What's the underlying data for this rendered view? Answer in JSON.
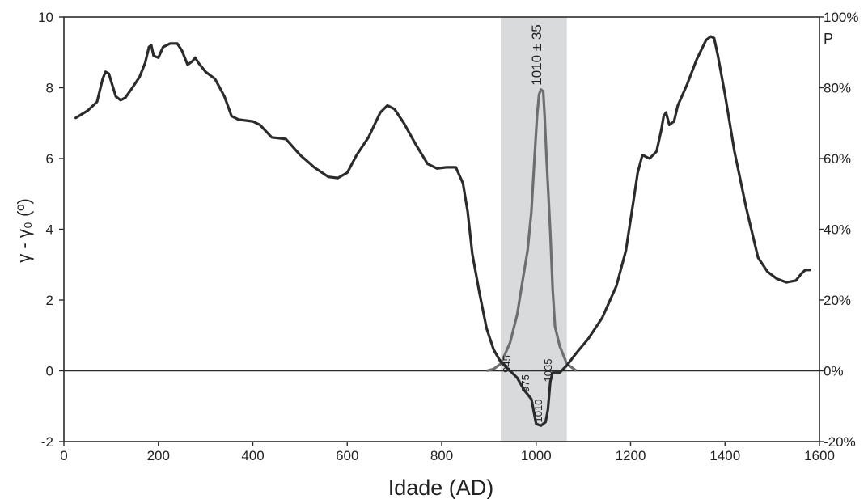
{
  "chart_data": {
    "type": "line",
    "xlabel": "Idade (AD)",
    "ylabel": "γ - γ₀ (º)",
    "y2label": "P",
    "xlim": [
      0,
      1600
    ],
    "ylim": [
      -2,
      10
    ],
    "y2lim": [
      "-20%",
      "100%"
    ],
    "x_ticks": [
      "0",
      "200",
      "400",
      "600",
      "800",
      "1000",
      "1200",
      "1400",
      "1600"
    ],
    "y_ticks": [
      "-2",
      "0",
      "2",
      "4",
      "6",
      "8",
      "10"
    ],
    "y2_ticks": [
      "-20%",
      "0%",
      "20%",
      "40%",
      "60%",
      "80%",
      "100%"
    ],
    "shaded_interval": [
      925,
      1065
    ],
    "colors": {
      "main": "#2b2b2b",
      "probability": "#6e6e6e",
      "band": "#d9dadc"
    },
    "series": [
      {
        "points": [
          [
            25,
            7.15
          ],
          [
            50,
            7.35
          ],
          [
            70,
            7.6
          ],
          [
            82,
            8.25
          ],
          [
            88,
            8.45
          ],
          [
            95,
            8.4
          ],
          [
            102,
            8.1
          ],
          [
            110,
            7.75
          ],
          [
            120,
            7.65
          ],
          [
            130,
            7.72
          ],
          [
            145,
            8.0
          ],
          [
            160,
            8.3
          ],
          [
            172,
            8.7
          ],
          [
            180,
            9.15
          ],
          [
            185,
            9.2
          ],
          [
            190,
            8.9
          ],
          [
            200,
            8.85
          ],
          [
            210,
            9.15
          ],
          [
            225,
            9.25
          ],
          [
            240,
            9.25
          ],
          [
            250,
            9.05
          ],
          [
            262,
            8.65
          ],
          [
            272,
            8.75
          ],
          [
            278,
            8.85
          ],
          [
            285,
            8.7
          ],
          [
            300,
            8.45
          ],
          [
            320,
            8.25
          ],
          [
            340,
            7.75
          ],
          [
            355,
            7.2
          ],
          [
            370,
            7.1
          ],
          [
            400,
            7.05
          ],
          [
            415,
            6.95
          ],
          [
            440,
            6.6
          ],
          [
            470,
            6.55
          ],
          [
            500,
            6.1
          ],
          [
            530,
            5.75
          ],
          [
            560,
            5.48
          ],
          [
            580,
            5.45
          ],
          [
            600,
            5.6
          ],
          [
            620,
            6.1
          ],
          [
            645,
            6.6
          ],
          [
            670,
            7.3
          ],
          [
            685,
            7.5
          ],
          [
            700,
            7.4
          ],
          [
            720,
            7.0
          ],
          [
            745,
            6.4
          ],
          [
            770,
            5.85
          ],
          [
            790,
            5.72
          ],
          [
            810,
            5.75
          ],
          [
            830,
            5.75
          ],
          [
            845,
            5.3
          ],
          [
            855,
            4.5
          ],
          [
            865,
            3.3
          ],
          [
            880,
            2.2
          ],
          [
            895,
            1.2
          ],
          [
            910,
            0.6
          ],
          [
            925,
            0.25
          ],
          [
            945,
            0.0
          ],
          [
            960,
            -0.2
          ],
          [
            975,
            -0.55
          ],
          [
            990,
            -0.8
          ],
          [
            1000,
            -1.5
          ],
          [
            1010,
            -1.55
          ],
          [
            1020,
            -1.45
          ],
          [
            1025,
            -1.1
          ],
          [
            1030,
            -0.3
          ],
          [
            1035,
            -0.05
          ],
          [
            1050,
            -0.05
          ],
          [
            1065,
            0.15
          ],
          [
            1085,
            0.5
          ],
          [
            1110,
            0.9
          ],
          [
            1140,
            1.5
          ],
          [
            1170,
            2.4
          ],
          [
            1190,
            3.4
          ],
          [
            1205,
            4.7
          ],
          [
            1215,
            5.6
          ],
          [
            1225,
            6.1
          ],
          [
            1240,
            6.0
          ],
          [
            1255,
            6.2
          ],
          [
            1265,
            6.8
          ],
          [
            1270,
            7.2
          ],
          [
            1275,
            7.3
          ],
          [
            1282,
            6.95
          ],
          [
            1292,
            7.05
          ],
          [
            1300,
            7.5
          ],
          [
            1320,
            8.1
          ],
          [
            1340,
            8.8
          ],
          [
            1360,
            9.35
          ],
          [
            1370,
            9.45
          ],
          [
            1377,
            9.4
          ],
          [
            1385,
            8.9
          ],
          [
            1400,
            7.8
          ],
          [
            1420,
            6.2
          ],
          [
            1445,
            4.6
          ],
          [
            1470,
            3.2
          ],
          [
            1490,
            2.8
          ],
          [
            1510,
            2.6
          ],
          [
            1530,
            2.5
          ],
          [
            1550,
            2.55
          ],
          [
            1562,
            2.75
          ],
          [
            1570,
            2.85
          ],
          [
            1580,
            2.85
          ]
        ]
      },
      {
        "points": [
          [
            895,
            0.0
          ],
          [
            910,
            0.05
          ],
          [
            925,
            0.2
          ],
          [
            945,
            0.8
          ],
          [
            960,
            1.6
          ],
          [
            972,
            2.6
          ],
          [
            982,
            3.4
          ],
          [
            990,
            4.5
          ],
          [
            997,
            6.1
          ],
          [
            1002,
            7.2
          ],
          [
            1006,
            7.8
          ],
          [
            1010,
            7.95
          ],
          [
            1015,
            7.9
          ],
          [
            1018,
            7.2
          ],
          [
            1022,
            6.0
          ],
          [
            1026,
            5.0
          ],
          [
            1030,
            3.9
          ],
          [
            1035,
            2.3
          ],
          [
            1040,
            1.25
          ],
          [
            1050,
            0.7
          ],
          [
            1065,
            0.2
          ],
          [
            1085,
            0.0
          ]
        ]
      }
    ],
    "annotations": [
      "1010 ± 35",
      "945",
      "975",
      "1010",
      "1035"
    ]
  }
}
